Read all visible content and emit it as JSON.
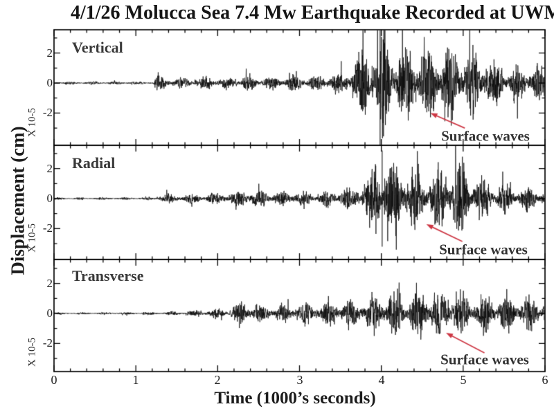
{
  "chart_data": {
    "type": "line",
    "title": "4/1/26 Molucca Sea 7.4 Mw Earthquake Recorded at UWM",
    "xlabel": "Time (1000’s seconds)",
    "ylabel": "Displacement (cm)",
    "scale_label": "X 10-5",
    "grid": false,
    "legend": "none",
    "x_range": [
      0,
      6
    ],
    "x_major_tick_step": 1,
    "x_minor_tick_step": 0.2,
    "x_tick_labels": [
      "0",
      "1",
      "2",
      "3",
      "4",
      "5",
      "6"
    ],
    "y_tick_values": [
      2,
      0,
      -2
    ],
    "y_tick_labels": [
      "2",
      "0",
      "-2"
    ],
    "y_minor_tick_values": [
      3,
      1,
      -1,
      -3
    ],
    "trace_color": "#0a0a0a",
    "annotation_color": "#cd3744",
    "panels": [
      {
        "label": "Vertical",
        "y_range": [
          -4.15,
          3.55
        ],
        "seed": 11,
        "envelope": [
          [
            0,
            0.07
          ],
          [
            1.22,
            0.08
          ],
          [
            1.27,
            0.5
          ],
          [
            1.35,
            0.32
          ],
          [
            1.5,
            0.24
          ],
          [
            1.65,
            0.3
          ],
          [
            1.8,
            0.28
          ],
          [
            1.93,
            0.42
          ],
          [
            2.05,
            0.3
          ],
          [
            2.2,
            0.35
          ],
          [
            2.35,
            0.42
          ],
          [
            2.55,
            0.3
          ],
          [
            2.75,
            0.36
          ],
          [
            2.95,
            0.42
          ],
          [
            3.15,
            0.38
          ],
          [
            3.35,
            0.46
          ],
          [
            3.5,
            0.52
          ],
          [
            3.6,
            0.85
          ],
          [
            3.7,
            1.4
          ],
          [
            3.8,
            2.1
          ],
          [
            3.9,
            2.5
          ],
          [
            3.97,
            3.0
          ],
          [
            4.05,
            2.6
          ],
          [
            4.15,
            2.3
          ],
          [
            4.25,
            1.7
          ],
          [
            4.35,
            2.3
          ],
          [
            4.45,
            2.1
          ],
          [
            4.55,
            1.7
          ],
          [
            4.65,
            1.9
          ],
          [
            4.75,
            1.8
          ],
          [
            4.85,
            2.2
          ],
          [
            4.95,
            2.1
          ],
          [
            5.05,
            1.6
          ],
          [
            5.15,
            1.7
          ],
          [
            5.25,
            1.3
          ],
          [
            5.4,
            1.15
          ],
          [
            5.55,
            1.0
          ],
          [
            5.7,
            0.95
          ],
          [
            5.85,
            1.05
          ],
          [
            6,
            0.85
          ]
        ],
        "spikes": [
          {
            "t": 3.985,
            "a": 6.0
          }
        ],
        "annotation": {
          "label": "Surface waves",
          "arrow_from": {
            "t": 5.02,
            "a": -3.0
          },
          "arrow_to": {
            "t": 4.6,
            "a": -2.0
          }
        }
      },
      {
        "label": "Radial",
        "y_range": [
          -4.05,
          3.55
        ],
        "seed": 23,
        "envelope": [
          [
            0,
            0.06
          ],
          [
            1.24,
            0.07
          ],
          [
            1.3,
            0.3
          ],
          [
            1.45,
            0.2
          ],
          [
            1.6,
            0.26
          ],
          [
            1.8,
            0.24
          ],
          [
            2.0,
            0.28
          ],
          [
            2.2,
            0.42
          ],
          [
            2.32,
            0.55
          ],
          [
            2.45,
            0.42
          ],
          [
            2.6,
            0.45
          ],
          [
            2.75,
            0.32
          ],
          [
            2.95,
            0.42
          ],
          [
            3.1,
            0.34
          ],
          [
            3.3,
            0.4
          ],
          [
            3.5,
            0.48
          ],
          [
            3.65,
            0.6
          ],
          [
            3.75,
            0.95
          ],
          [
            3.85,
            1.5
          ],
          [
            3.95,
            1.9
          ],
          [
            4.02,
            2.2
          ],
          [
            4.1,
            2.0
          ],
          [
            4.2,
            1.8
          ],
          [
            4.3,
            1.9
          ],
          [
            4.4,
            1.7
          ],
          [
            4.5,
            1.35
          ],
          [
            4.6,
            1.5
          ],
          [
            4.7,
            1.55
          ],
          [
            4.8,
            1.8
          ],
          [
            4.9,
            2.0
          ],
          [
            5.0,
            2.1
          ],
          [
            5.1,
            1.4
          ],
          [
            5.2,
            1.0
          ],
          [
            5.35,
            0.85
          ],
          [
            5.5,
            0.75
          ],
          [
            5.7,
            0.65
          ],
          [
            5.85,
            0.62
          ],
          [
            6,
            0.55
          ]
        ],
        "spikes": [
          {
            "t": 4.01,
            "a": 3.2
          }
        ],
        "annotation": {
          "label": "Surface waves",
          "arrow_from": {
            "t": 4.99,
            "a": -2.86
          },
          "arrow_to": {
            "t": 4.55,
            "a": -1.71
          }
        }
      },
      {
        "label": "Transverse",
        "y_range": [
          -3.85,
          3.6
        ],
        "seed": 37,
        "envelope": [
          [
            0,
            0.05
          ],
          [
            0.9,
            0.06
          ],
          [
            1.3,
            0.08
          ],
          [
            1.6,
            0.13
          ],
          [
            1.9,
            0.2
          ],
          [
            2.1,
            0.26
          ],
          [
            2.24,
            0.55
          ],
          [
            2.34,
            0.75
          ],
          [
            2.45,
            0.5
          ],
          [
            2.6,
            0.42
          ],
          [
            2.75,
            0.55
          ],
          [
            2.9,
            0.46
          ],
          [
            3.05,
            0.52
          ],
          [
            3.2,
            0.6
          ],
          [
            3.35,
            0.55
          ],
          [
            3.5,
            0.72
          ],
          [
            3.65,
            0.68
          ],
          [
            3.8,
            0.85
          ],
          [
            3.95,
            0.95
          ],
          [
            4.1,
            1.15
          ],
          [
            4.25,
            1.05
          ],
          [
            4.4,
            1.25
          ],
          [
            4.55,
            1.4
          ],
          [
            4.7,
            1.15
          ],
          [
            4.85,
            1.35
          ],
          [
            5.0,
            1.05
          ],
          [
            5.15,
            0.95
          ],
          [
            5.3,
            1.05
          ],
          [
            5.45,
            0.88
          ],
          [
            5.6,
            0.98
          ],
          [
            5.75,
            0.82
          ],
          [
            5.9,
            0.9
          ],
          [
            6,
            0.78
          ]
        ],
        "spikes": [],
        "annotation": {
          "label": "Surface waves",
          "arrow_from": {
            "t": 5.26,
            "a": -2.63
          },
          "arrow_to": {
            "t": 4.79,
            "a": -1.29
          }
        }
      }
    ]
  }
}
